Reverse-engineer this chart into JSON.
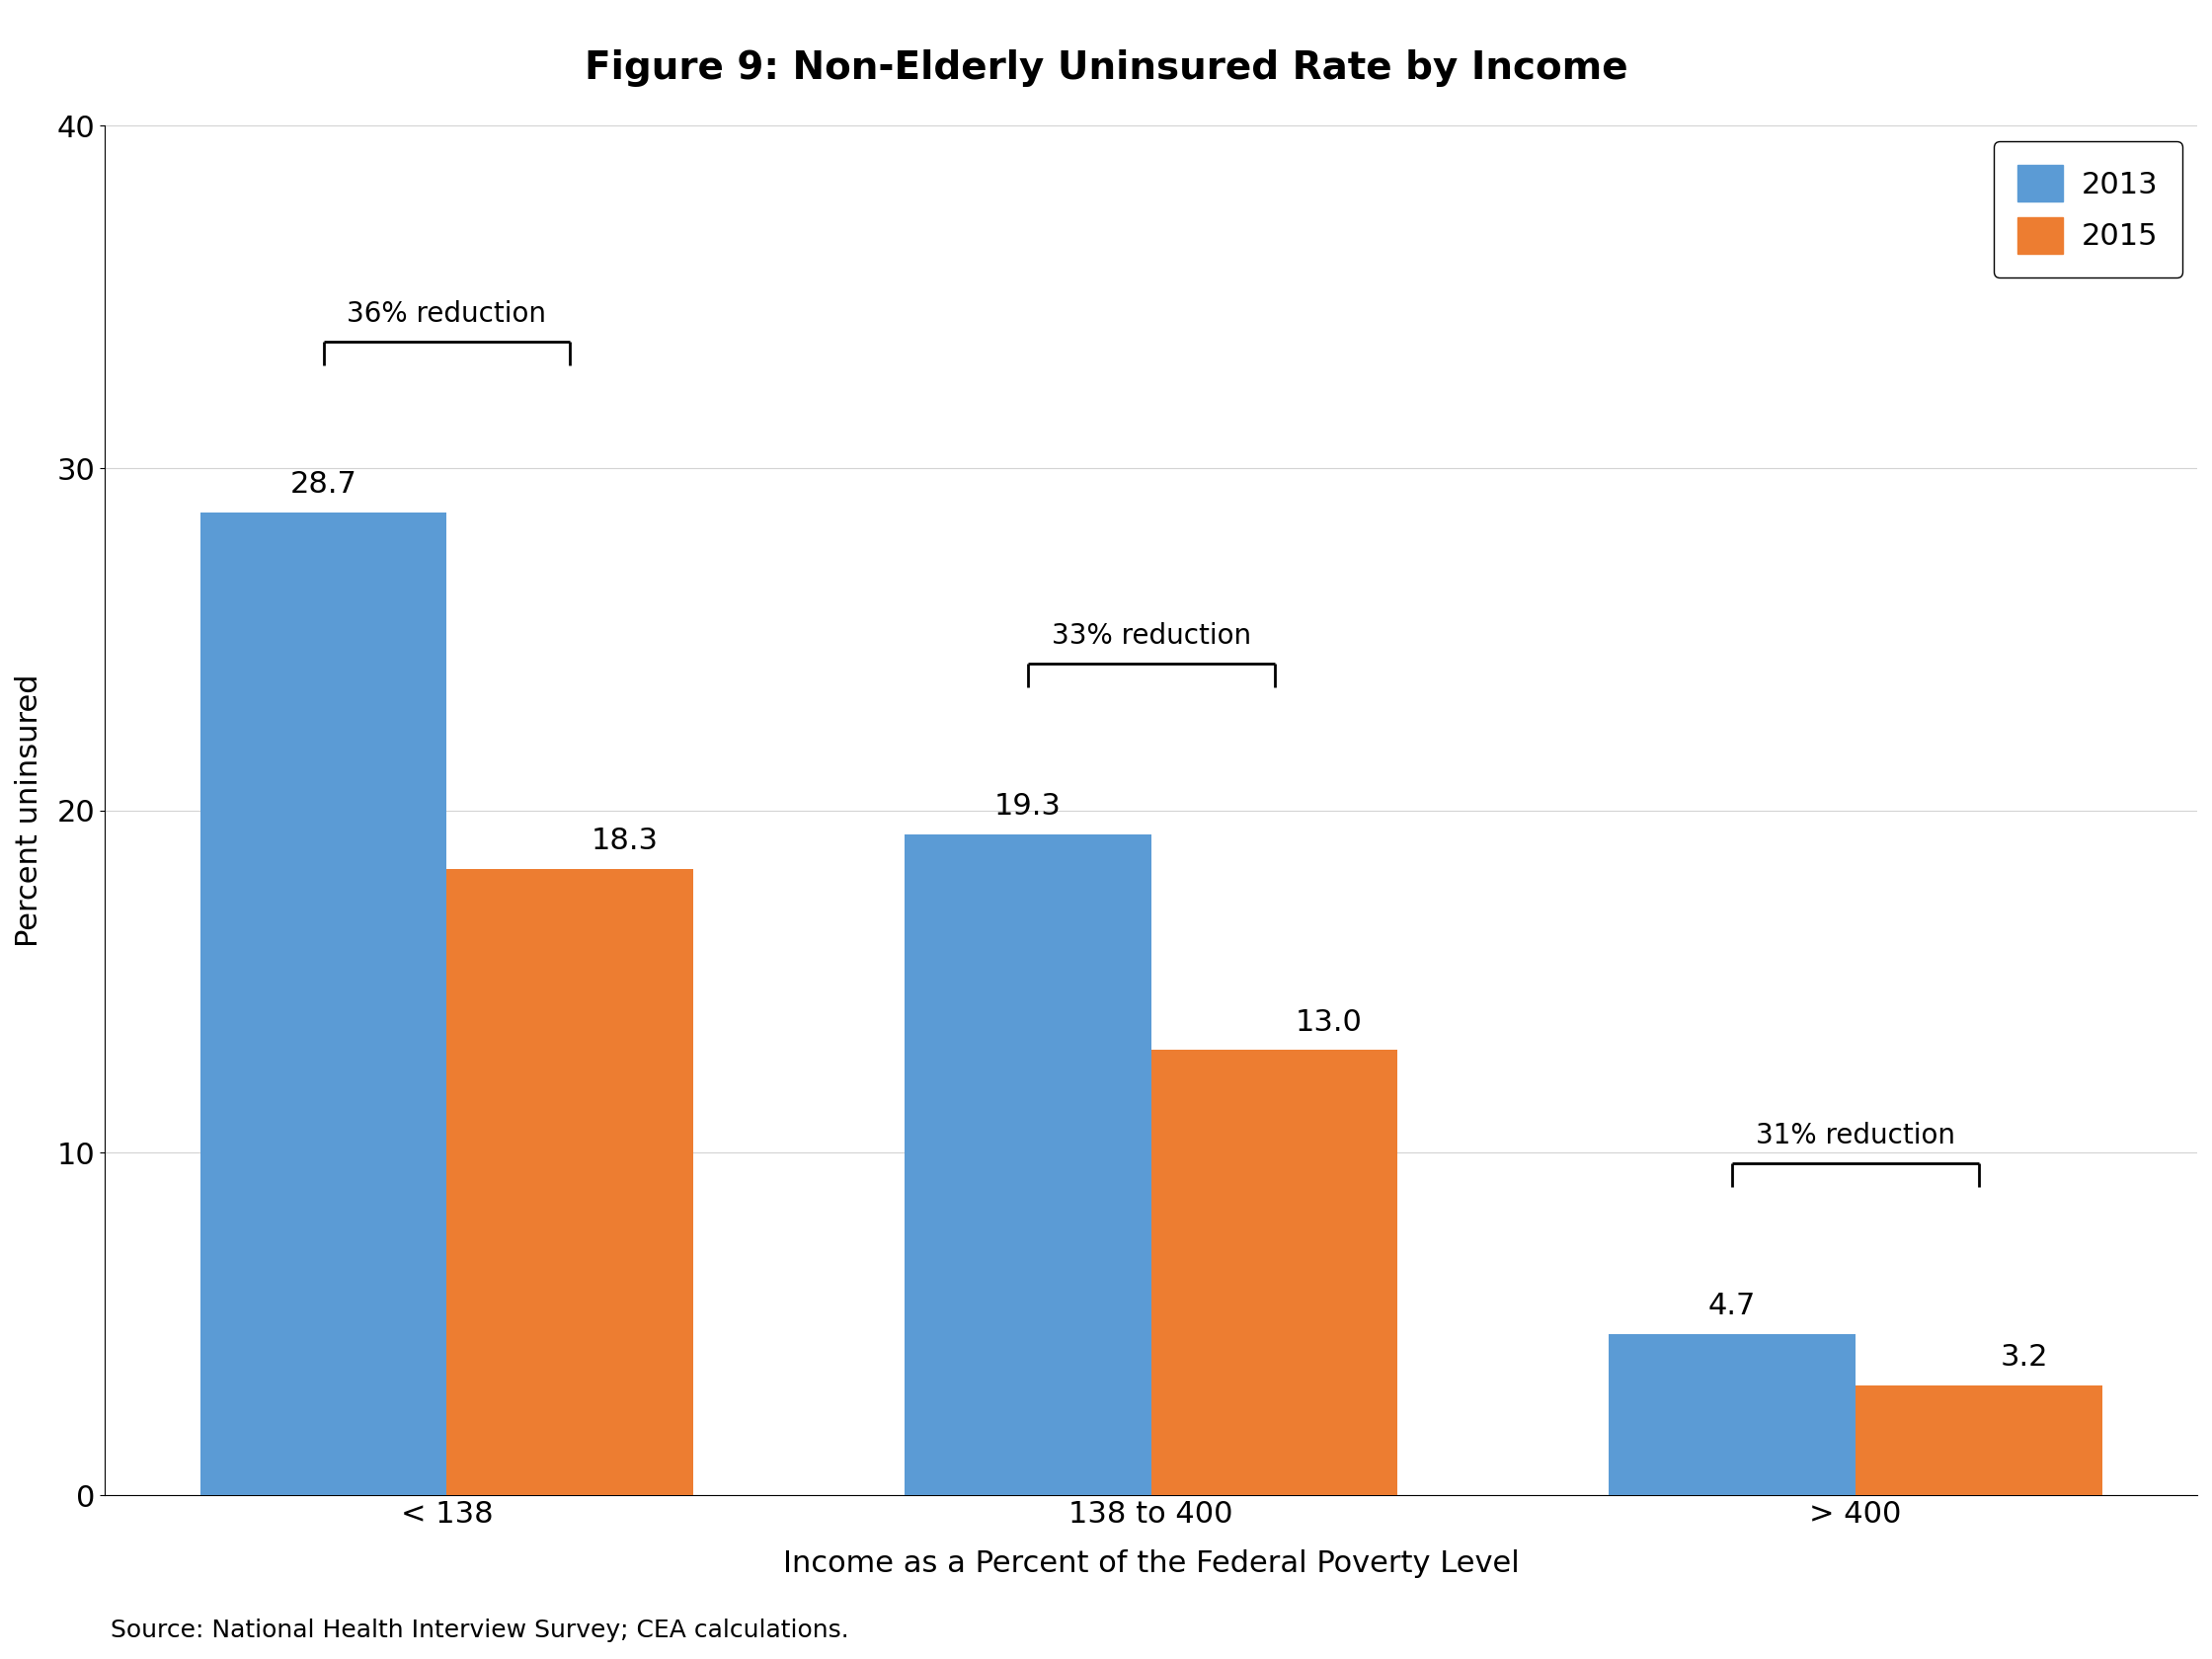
{
  "title": "Figure 9: Non-Elderly Uninsured Rate by Income",
  "ylabel": "Percent uninsured",
  "xlabel": "Income as a Percent of the Federal Poverty Level",
  "source": "Source: National Health Interview Survey; CEA calculations.",
  "categories": [
    "< 138",
    "138 to 400",
    "> 400"
  ],
  "values_2013": [
    28.7,
    19.3,
    4.7
  ],
  "values_2015": [
    18.3,
    13.0,
    3.2
  ],
  "reductions": [
    "36% reduction",
    "33% reduction",
    "31% reduction"
  ],
  "color_2013": "#5B9BD5",
  "color_2015": "#ED7D31",
  "ylim": [
    0,
    40
  ],
  "yticks": [
    0,
    10,
    20,
    30,
    40
  ],
  "bar_width": 0.35,
  "legend_labels": [
    "2013",
    "2015"
  ],
  "title_fontsize": 28,
  "label_fontsize": 22,
  "tick_fontsize": 22,
  "bar_label_fontsize": 22,
  "reduction_fontsize": 20,
  "source_fontsize": 18,
  "legend_fontsize": 22
}
